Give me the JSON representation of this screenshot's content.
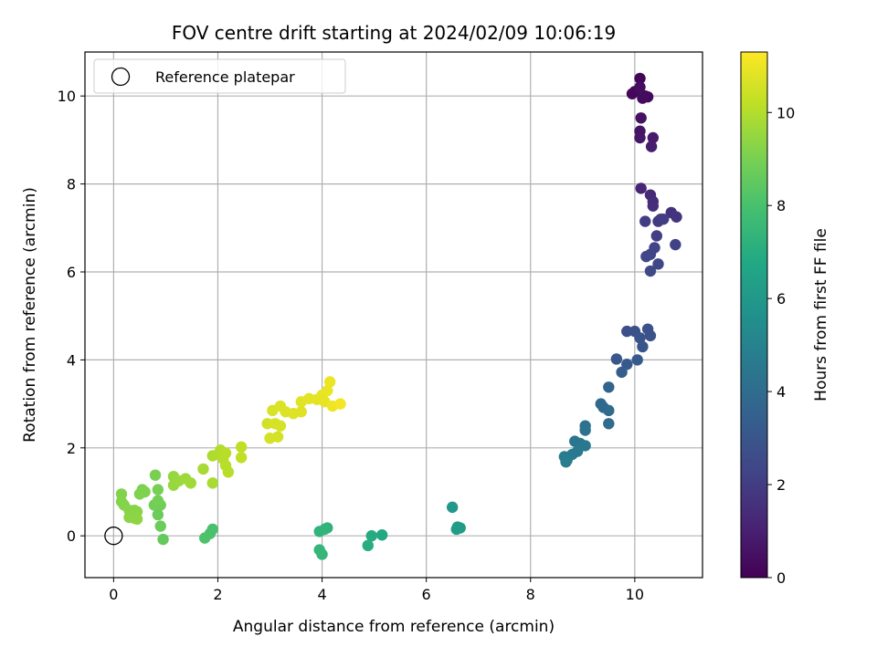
{
  "chart_data": {
    "type": "scatter",
    "title": "FOV centre drift starting at 2024/02/09 10:06:19",
    "xlabel": "Angular distance from reference (arcmin)",
    "ylabel": "Rotation from reference (arcmin)",
    "xlim": [
      -0.55,
      11.3
    ],
    "ylim": [
      -0.95,
      11.0
    ],
    "xticks": [
      0,
      2,
      4,
      6,
      8,
      10
    ],
    "yticks": [
      0,
      2,
      4,
      6,
      8,
      10
    ],
    "grid": true,
    "legend": {
      "placement": "top-left",
      "entries": [
        "Reference platepar"
      ]
    },
    "reference_point": {
      "x": 0,
      "y": 0,
      "label": "Reference platepar"
    },
    "colorbar": {
      "label": "Hours from first FF file",
      "colormap": "viridis",
      "range": [
        0,
        11.3
      ],
      "ticks": [
        0,
        2,
        4,
        6,
        8,
        10
      ]
    },
    "points": [
      {
        "x": 10.1,
        "y": 10.4,
        "c": 0.1
      },
      {
        "x": 10.0,
        "y": 10.1,
        "c": 0.15
      },
      {
        "x": 9.95,
        "y": 10.05,
        "c": 0.2
      },
      {
        "x": 10.2,
        "y": 10.0,
        "c": 0.25
      },
      {
        "x": 10.25,
        "y": 9.98,
        "c": 0.3
      },
      {
        "x": 10.15,
        "y": 9.95,
        "c": 0.35
      },
      {
        "x": 10.1,
        "y": 10.2,
        "c": 0.4
      },
      {
        "x": 10.12,
        "y": 9.5,
        "c": 0.5
      },
      {
        "x": 10.1,
        "y": 9.2,
        "c": 0.6
      },
      {
        "x": 10.1,
        "y": 9.05,
        "c": 0.7
      },
      {
        "x": 10.35,
        "y": 9.05,
        "c": 0.8
      },
      {
        "x": 10.32,
        "y": 8.85,
        "c": 0.9
      },
      {
        "x": 10.12,
        "y": 7.9,
        "c": 1.2
      },
      {
        "x": 10.3,
        "y": 7.75,
        "c": 1.3
      },
      {
        "x": 10.35,
        "y": 7.6,
        "c": 1.4
      },
      {
        "x": 10.35,
        "y": 7.5,
        "c": 1.5
      },
      {
        "x": 10.7,
        "y": 7.35,
        "c": 1.6
      },
      {
        "x": 10.8,
        "y": 7.25,
        "c": 1.7
      },
      {
        "x": 10.5,
        "y": 7.2,
        "c": 1.8
      },
      {
        "x": 10.45,
        "y": 7.15,
        "c": 1.9
      },
      {
        "x": 10.2,
        "y": 7.15,
        "c": 2.0
      },
      {
        "x": 10.55,
        "y": 7.2,
        "c": 2.05
      },
      {
        "x": 10.42,
        "y": 6.82,
        "c": 2.1
      },
      {
        "x": 10.78,
        "y": 6.62,
        "c": 2.2
      },
      {
        "x": 10.38,
        "y": 6.55,
        "c": 2.25
      },
      {
        "x": 10.3,
        "y": 6.4,
        "c": 2.3
      },
      {
        "x": 10.22,
        "y": 6.35,
        "c": 2.35
      },
      {
        "x": 10.45,
        "y": 6.18,
        "c": 2.4
      },
      {
        "x": 10.3,
        "y": 6.02,
        "c": 2.45
      },
      {
        "x": 9.85,
        "y": 4.65,
        "c": 2.7
      },
      {
        "x": 10.0,
        "y": 4.65,
        "c": 2.8
      },
      {
        "x": 10.25,
        "y": 4.7,
        "c": 2.85
      },
      {
        "x": 10.1,
        "y": 4.5,
        "c": 2.9
      },
      {
        "x": 10.3,
        "y": 4.55,
        "c": 2.95
      },
      {
        "x": 10.15,
        "y": 4.3,
        "c": 3.0
      },
      {
        "x": 9.65,
        "y": 4.02,
        "c": 3.1
      },
      {
        "x": 9.85,
        "y": 3.9,
        "c": 3.15
      },
      {
        "x": 10.05,
        "y": 4.0,
        "c": 3.2
      },
      {
        "x": 9.75,
        "y": 3.72,
        "c": 3.3
      },
      {
        "x": 9.5,
        "y": 3.38,
        "c": 3.6
      },
      {
        "x": 9.35,
        "y": 3.0,
        "c": 3.8
      },
      {
        "x": 9.4,
        "y": 2.92,
        "c": 3.85
      },
      {
        "x": 9.5,
        "y": 2.85,
        "c": 3.9
      },
      {
        "x": 9.5,
        "y": 2.55,
        "c": 4.0
      },
      {
        "x": 9.05,
        "y": 2.5,
        "c": 4.2
      },
      {
        "x": 9.05,
        "y": 2.4,
        "c": 4.25
      },
      {
        "x": 8.85,
        "y": 2.15,
        "c": 4.4
      },
      {
        "x": 8.95,
        "y": 2.1,
        "c": 4.45
      },
      {
        "x": 9.05,
        "y": 2.05,
        "c": 4.5
      },
      {
        "x": 8.9,
        "y": 1.92,
        "c": 4.55
      },
      {
        "x": 8.8,
        "y": 1.85,
        "c": 4.6
      },
      {
        "x": 8.65,
        "y": 1.8,
        "c": 4.7
      },
      {
        "x": 8.7,
        "y": 1.72,
        "c": 4.75
      },
      {
        "x": 8.68,
        "y": 1.68,
        "c": 4.8
      },
      {
        "x": 6.5,
        "y": 0.65,
        "c": 6.0
      },
      {
        "x": 6.6,
        "y": 0.2,
        "c": 6.1
      },
      {
        "x": 6.65,
        "y": 0.18,
        "c": 6.15
      },
      {
        "x": 6.58,
        "y": 0.15,
        "c": 6.2
      },
      {
        "x": 5.15,
        "y": 0.02,
        "c": 6.8
      },
      {
        "x": 4.95,
        "y": 0.0,
        "c": 6.9
      },
      {
        "x": 4.88,
        "y": -0.22,
        "c": 7.0
      },
      {
        "x": 4.1,
        "y": 0.18,
        "c": 7.2
      },
      {
        "x": 3.95,
        "y": 0.1,
        "c": 7.3
      },
      {
        "x": 4.05,
        "y": 0.15,
        "c": 7.35
      },
      {
        "x": 3.95,
        "y": -0.32,
        "c": 7.4
      },
      {
        "x": 4.0,
        "y": -0.42,
        "c": 7.45
      },
      {
        "x": 1.9,
        "y": 0.15,
        "c": 8.0
      },
      {
        "x": 1.85,
        "y": 0.05,
        "c": 8.05
      },
      {
        "x": 1.75,
        "y": -0.05,
        "c": 8.1
      },
      {
        "x": 0.95,
        "y": -0.08,
        "c": 8.6
      },
      {
        "x": 0.9,
        "y": 0.22,
        "c": 8.7
      },
      {
        "x": 0.85,
        "y": 0.48,
        "c": 8.75
      },
      {
        "x": 0.9,
        "y": 0.7,
        "c": 8.8
      },
      {
        "x": 0.78,
        "y": 0.7,
        "c": 8.85
      },
      {
        "x": 0.85,
        "y": 0.8,
        "c": 8.9
      },
      {
        "x": 0.85,
        "y": 1.05,
        "c": 8.95
      },
      {
        "x": 0.8,
        "y": 1.38,
        "c": 9.0
      },
      {
        "x": 0.55,
        "y": 1.05,
        "c": 9.05
      },
      {
        "x": 0.6,
        "y": 1.0,
        "c": 9.1
      },
      {
        "x": 0.5,
        "y": 0.95,
        "c": 9.12
      },
      {
        "x": 0.15,
        "y": 0.95,
        "c": 9.15
      },
      {
        "x": 0.15,
        "y": 0.78,
        "c": 9.2
      },
      {
        "x": 0.2,
        "y": 0.7,
        "c": 9.22
      },
      {
        "x": 0.3,
        "y": 0.58,
        "c": 9.25
      },
      {
        "x": 0.4,
        "y": 0.58,
        "c": 9.28
      },
      {
        "x": 0.45,
        "y": 0.55,
        "c": 9.3
      },
      {
        "x": 0.3,
        "y": 0.42,
        "c": 9.32
      },
      {
        "x": 0.4,
        "y": 0.4,
        "c": 9.35
      },
      {
        "x": 0.45,
        "y": 0.38,
        "c": 9.38
      },
      {
        "x": 1.15,
        "y": 1.35,
        "c": 9.5
      },
      {
        "x": 1.15,
        "y": 1.15,
        "c": 9.55
      },
      {
        "x": 1.25,
        "y": 1.25,
        "c": 9.6
      },
      {
        "x": 1.38,
        "y": 1.3,
        "c": 9.65
      },
      {
        "x": 1.48,
        "y": 1.2,
        "c": 9.7
      },
      {
        "x": 1.72,
        "y": 1.52,
        "c": 9.8
      },
      {
        "x": 1.9,
        "y": 1.2,
        "c": 9.85
      },
      {
        "x": 1.9,
        "y": 1.82,
        "c": 9.9
      },
      {
        "x": 2.0,
        "y": 1.85,
        "c": 9.95
      },
      {
        "x": 2.05,
        "y": 1.95,
        "c": 10.0
      },
      {
        "x": 2.1,
        "y": 1.75,
        "c": 10.02
      },
      {
        "x": 2.15,
        "y": 1.6,
        "c": 10.05
      },
      {
        "x": 2.2,
        "y": 1.45,
        "c": 10.1
      },
      {
        "x": 2.15,
        "y": 1.88,
        "c": 10.12
      },
      {
        "x": 2.45,
        "y": 2.02,
        "c": 10.2
      },
      {
        "x": 2.45,
        "y": 1.78,
        "c": 10.22
      },
      {
        "x": 2.95,
        "y": 2.55,
        "c": 10.5
      },
      {
        "x": 3.0,
        "y": 2.22,
        "c": 10.55
      },
      {
        "x": 3.15,
        "y": 2.25,
        "c": 10.58
      },
      {
        "x": 3.1,
        "y": 2.55,
        "c": 10.6
      },
      {
        "x": 3.2,
        "y": 2.5,
        "c": 10.62
      },
      {
        "x": 3.05,
        "y": 2.85,
        "c": 10.65
      },
      {
        "x": 3.2,
        "y": 2.95,
        "c": 10.7
      },
      {
        "x": 3.3,
        "y": 2.82,
        "c": 10.72
      },
      {
        "x": 3.45,
        "y": 2.78,
        "c": 10.75
      },
      {
        "x": 3.6,
        "y": 2.82,
        "c": 10.78
      },
      {
        "x": 3.6,
        "y": 3.05,
        "c": 10.8
      },
      {
        "x": 3.75,
        "y": 3.12,
        "c": 10.82
      },
      {
        "x": 3.9,
        "y": 3.1,
        "c": 10.85
      },
      {
        "x": 4.0,
        "y": 3.2,
        "c": 10.88
      },
      {
        "x": 4.05,
        "y": 3.05,
        "c": 10.9
      },
      {
        "x": 4.1,
        "y": 3.3,
        "c": 10.95
      },
      {
        "x": 4.15,
        "y": 3.5,
        "c": 11.0
      },
      {
        "x": 4.2,
        "y": 2.95,
        "c": 11.05
      },
      {
        "x": 4.35,
        "y": 3.0,
        "c": 11.1
      }
    ]
  }
}
